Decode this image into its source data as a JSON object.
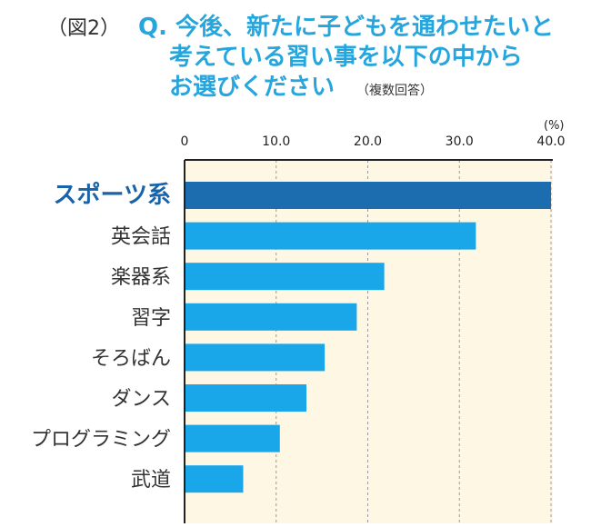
{
  "header": {
    "figure_label": "（図2）",
    "title_lines": [
      "Q. 今後、新たに子どもを通わせたいと",
      "考えている習い事を以下の中から",
      "お選びください"
    ],
    "title_note": "（複数回答）"
  },
  "colors": {
    "title": "#27a6dd",
    "bar": "#1aa7ea",
    "bar_highlight": "#1b6db0",
    "label_highlight": "#1a63a8",
    "plot_background": "#fdf7e4"
  },
  "chart_data": {
    "type": "bar",
    "orientation": "horizontal",
    "unit": "(%)",
    "xlim": [
      0,
      40
    ],
    "ticks": [
      "0",
      "10.0",
      "20.0",
      "30.0",
      "40.0"
    ],
    "tick_values": [
      0,
      10,
      20,
      30,
      40
    ],
    "grid": "vertical dashed",
    "categories": [
      "スポーツ系",
      "英会話",
      "楽器系",
      "習字",
      "そろばん",
      "ダンス",
      "プログラミング",
      "武道"
    ],
    "values": [
      40.0,
      31.8,
      21.8,
      18.8,
      15.3,
      13.3,
      10.4,
      6.4
    ],
    "highlight_index": 0
  }
}
